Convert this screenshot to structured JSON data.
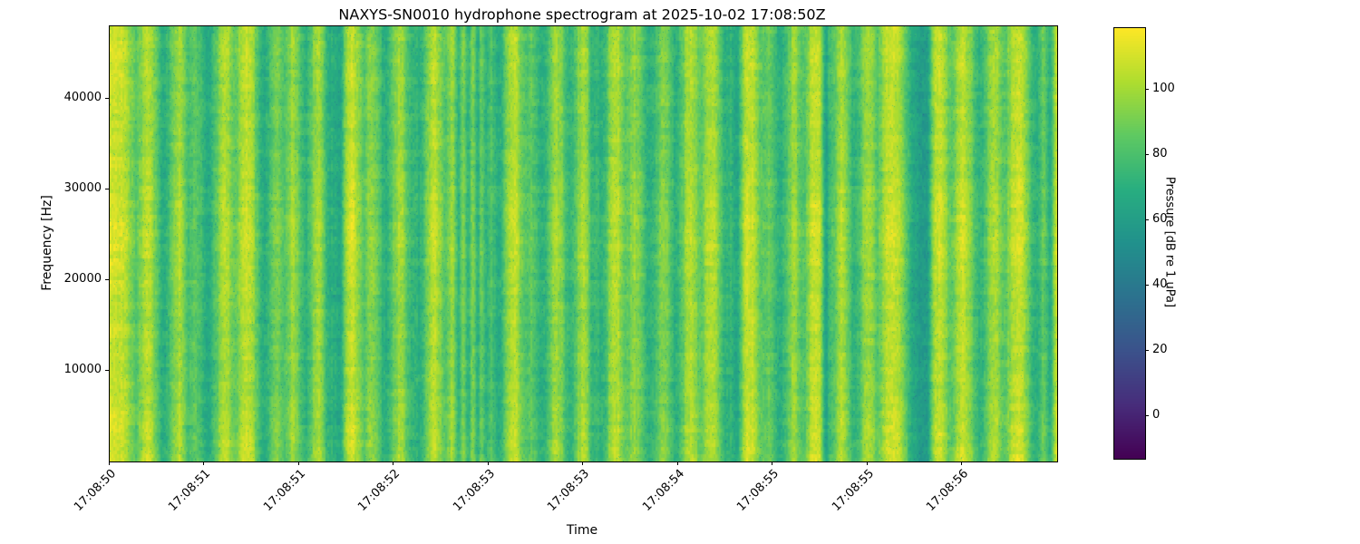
{
  "chart_data": {
    "type": "heatmap",
    "title": "NAXYS-SN0010 hydrophone spectrogram at 2025-10-02 17:08:50Z",
    "xlabel": "Time",
    "ylabel": "Frequency [Hz]",
    "xtick_labels": [
      "17:08:50",
      "17:08:51",
      "17:08:51",
      "17:08:52",
      "17:08:53",
      "17:08:53",
      "17:08:54",
      "17:08:55",
      "17:08:55",
      "17:08:56"
    ],
    "xtick_positions": [
      0.0,
      0.1,
      0.2,
      0.3,
      0.4,
      0.5,
      0.6,
      0.7,
      0.8,
      0.9
    ],
    "yticks": [
      10000,
      20000,
      30000,
      40000
    ],
    "freq_range_hz": [
      0,
      48000
    ],
    "colormap": "viridis",
    "colorbar": {
      "label": "Pressure [dB re 1 uPa]",
      "ticks": [
        0,
        20,
        40,
        60,
        80,
        100
      ],
      "vmin": -13,
      "vmax": 119
    },
    "background_level_db": 113,
    "band_min_level_db": 60,
    "freq_profile_bottom_to_top": [
      0.98,
      0.93,
      0.82,
      0.85,
      0.82,
      0.88,
      1.0,
      0.97,
      0.84,
      0.82,
      0.84,
      0.9,
      0.88
    ],
    "dark_bands": [
      [
        0.027,
        0.006,
        0.45
      ],
      [
        0.057,
        0.008,
        0.75
      ],
      [
        0.083,
        0.005,
        0.5
      ],
      [
        0.103,
        0.009,
        0.8
      ],
      [
        0.132,
        0.005,
        0.4
      ],
      [
        0.163,
        0.008,
        0.75
      ],
      [
        0.184,
        0.005,
        0.5
      ],
      [
        0.206,
        0.007,
        0.7
      ],
      [
        0.232,
        0.006,
        0.75
      ],
      [
        0.243,
        0.004,
        0.7
      ],
      [
        0.268,
        0.005,
        0.45
      ],
      [
        0.291,
        0.008,
        0.75
      ],
      [
        0.316,
        0.005,
        0.5
      ],
      [
        0.328,
        0.006,
        0.7
      ],
      [
        0.354,
        0.005,
        0.5
      ],
      [
        0.368,
        0.003,
        0.65
      ],
      [
        0.378,
        0.003,
        0.7
      ],
      [
        0.388,
        0.003,
        0.7
      ],
      [
        0.397,
        0.003,
        0.55
      ],
      [
        0.41,
        0.007,
        0.75
      ],
      [
        0.438,
        0.005,
        0.45
      ],
      [
        0.456,
        0.008,
        0.75
      ],
      [
        0.486,
        0.007,
        0.7
      ],
      [
        0.509,
        0.004,
        0.5
      ],
      [
        0.52,
        0.006,
        0.7
      ],
      [
        0.545,
        0.005,
        0.45
      ],
      [
        0.57,
        0.009,
        0.75
      ],
      [
        0.598,
        0.007,
        0.7
      ],
      [
        0.624,
        0.005,
        0.45
      ],
      [
        0.651,
        0.007,
        0.7
      ],
      [
        0.663,
        0.004,
        0.65
      ],
      [
        0.689,
        0.005,
        0.45
      ],
      [
        0.708,
        0.008,
        0.75
      ],
      [
        0.732,
        0.005,
        0.5
      ],
      [
        0.756,
        0.003,
        0.8
      ],
      [
        0.764,
        0.004,
        0.5
      ],
      [
        0.787,
        0.007,
        0.7
      ],
      [
        0.811,
        0.005,
        0.45
      ],
      [
        0.85,
        0.009,
        0.8
      ],
      [
        0.862,
        0.005,
        0.7
      ],
      [
        0.888,
        0.005,
        0.45
      ],
      [
        0.919,
        0.008,
        0.7
      ],
      [
        0.945,
        0.005,
        0.45
      ],
      [
        0.978,
        0.007,
        0.75
      ],
      [
        0.993,
        0.003,
        0.7
      ]
    ]
  }
}
